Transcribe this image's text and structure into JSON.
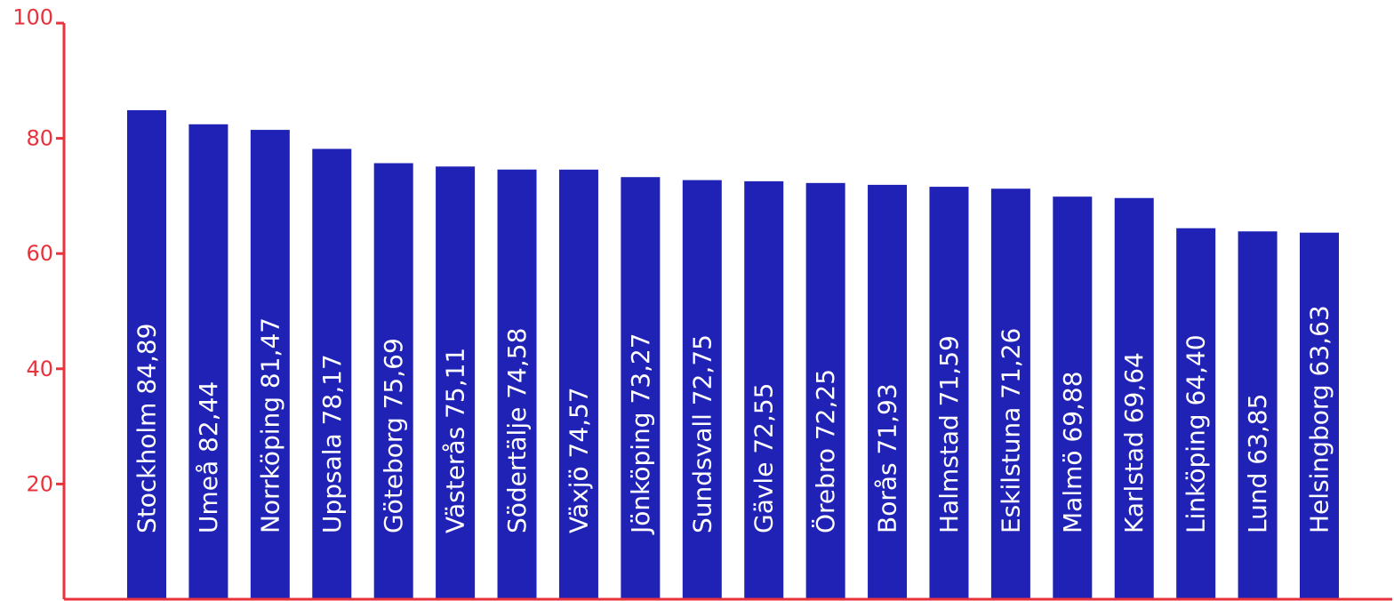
{
  "colors": {
    "bar": "#1f22b5",
    "axis": "#e8323c",
    "label_text": "#ffffff",
    "background": "#ffffff"
  },
  "chart_data": {
    "type": "bar",
    "title": "",
    "xlabel": "",
    "ylabel": "",
    "ylim": [
      0,
      100
    ],
    "yticks": [
      20,
      40,
      60,
      80,
      100
    ],
    "grid": false,
    "legend": "none",
    "categories": [
      "Stockholm",
      "Umeå",
      "Norrköping",
      "Uppsala",
      "Göteborg",
      "Västerås",
      "Södertälje",
      "Växjö",
      "Jönköping",
      "Sundsvall",
      "Gävle",
      "Örebro",
      "Borås",
      "Halmstad",
      "Eskilstuna",
      "Malmö",
      "Karlstad",
      "Linköping",
      "Lund",
      "Helsingborg"
    ],
    "values": [
      84.89,
      82.44,
      81.47,
      78.17,
      75.69,
      75.11,
      74.58,
      74.57,
      73.27,
      72.75,
      72.55,
      72.25,
      71.93,
      71.59,
      71.26,
      69.88,
      69.64,
      64.4,
      63.85,
      63.63
    ],
    "data_labels": [
      "Stockholm 84,89",
      "Umeå 82,44",
      "Norrköping 81,47",
      "Uppsala 78,17",
      "Göteborg 75,69",
      "Västerås 75,11",
      "Södertälje 74,58",
      "Växjö 74,57",
      "Jönköping 73,27",
      "Sundsvall 72,75",
      "Gävle 72,55",
      "Örebro 72,25",
      "Borås 71,93",
      "Halmstad 71,59",
      "Eskilstuna 71,26",
      "Malmö 69,88",
      "Karlstad 69,64",
      "Linköping 64,40",
      "Lund 63,85",
      "Helsingborg 63,63"
    ]
  }
}
